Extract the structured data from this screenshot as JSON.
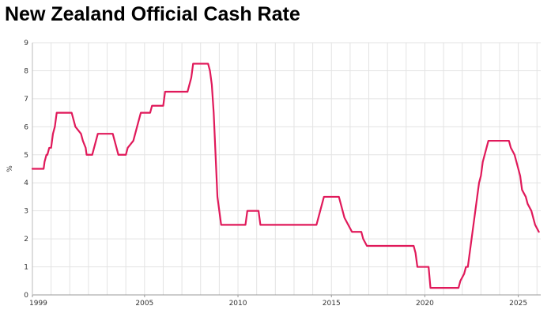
{
  "chart_data": {
    "type": "line",
    "title": "New Zealand Official Cash Rate",
    "xlabel": "",
    "ylabel": "%",
    "xlim": [
      1999.0,
      2026.2
    ],
    "ylim": [
      0,
      9
    ],
    "grid": true,
    "line_color": "#e0195a",
    "x_ticks": [
      1999,
      2005,
      2010,
      2015,
      2020,
      2025
    ],
    "y_ticks": [
      0,
      1,
      2,
      3,
      4,
      5,
      6,
      7,
      8,
      9
    ],
    "series": [
      {
        "name": "",
        "x": [
          1999.0,
          1999.6,
          1999.65,
          1999.75,
          1999.8,
          1999.9,
          2000.0,
          2000.1,
          2000.2,
          2000.3,
          2001.1,
          2001.2,
          2001.3,
          2001.6,
          2001.7,
          2001.85,
          2001.9,
          2002.2,
          2002.3,
          2002.4,
          2002.5,
          2003.3,
          2003.4,
          2003.5,
          2003.6,
          2004.0,
          2004.1,
          2004.4,
          2004.5,
          2004.6,
          2004.7,
          2004.8,
          2004.9,
          2005.0,
          2005.3,
          2005.4,
          2006.0,
          2006.1,
          2006.2,
          2007.3,
          2007.4,
          2007.5,
          2007.6,
          2008.4,
          2008.5,
          2008.6,
          2008.7,
          2008.8,
          2008.9,
          2009.0,
          2009.1,
          2010.4,
          2010.5,
          2011.1,
          2011.2,
          2014.2,
          2014.3,
          2014.4,
          2014.5,
          2014.6,
          2015.4,
          2015.5,
          2015.6,
          2015.7,
          2015.9,
          2016.1,
          2016.2,
          2016.6,
          2016.7,
          2016.9,
          2017.0,
          2019.4,
          2019.5,
          2019.6,
          2019.7,
          2020.2,
          2020.3,
          2021.8,
          2021.9,
          2022.1,
          2022.2,
          2022.3,
          2022.4,
          2022.5,
          2022.6,
          2022.7,
          2022.8,
          2022.9,
          2023.0,
          2023.1,
          2023.2,
          2023.3,
          2023.4,
          2024.5,
          2024.6,
          2024.8,
          2024.9,
          2025.1,
          2025.2,
          2025.4,
          2025.5,
          2025.7,
          2025.8,
          2025.9,
          2026.1
        ],
        "y": [
          4.5,
          4.5,
          4.75,
          5.0,
          5.0,
          5.25,
          5.25,
          5.75,
          6.0,
          6.5,
          6.5,
          6.25,
          6.0,
          5.75,
          5.5,
          5.25,
          5.0,
          5.0,
          5.25,
          5.5,
          5.75,
          5.75,
          5.5,
          5.25,
          5.0,
          5.0,
          5.25,
          5.5,
          5.75,
          6.0,
          6.25,
          6.5,
          6.5,
          6.5,
          6.5,
          6.75,
          6.75,
          7.25,
          7.25,
          7.25,
          7.5,
          7.75,
          8.25,
          8.25,
          8.0,
          7.5,
          6.5,
          5.0,
          3.5,
          3.0,
          2.5,
          2.5,
          3.0,
          3.0,
          2.5,
          2.5,
          2.75,
          3.0,
          3.25,
          3.5,
          3.5,
          3.25,
          3.0,
          2.75,
          2.5,
          2.25,
          2.25,
          2.25,
          2.0,
          1.75,
          1.75,
          1.75,
          1.5,
          1.0,
          1.0,
          1.0,
          0.25,
          0.25,
          0.5,
          0.75,
          1.0,
          1.0,
          1.5,
          2.0,
          2.5,
          3.0,
          3.5,
          4.0,
          4.25,
          4.75,
          5.0,
          5.25,
          5.5,
          5.5,
          5.25,
          5.0,
          4.75,
          4.25,
          3.75,
          3.5,
          3.25,
          3.0,
          2.75,
          2.5,
          2.25
        ]
      }
    ]
  }
}
